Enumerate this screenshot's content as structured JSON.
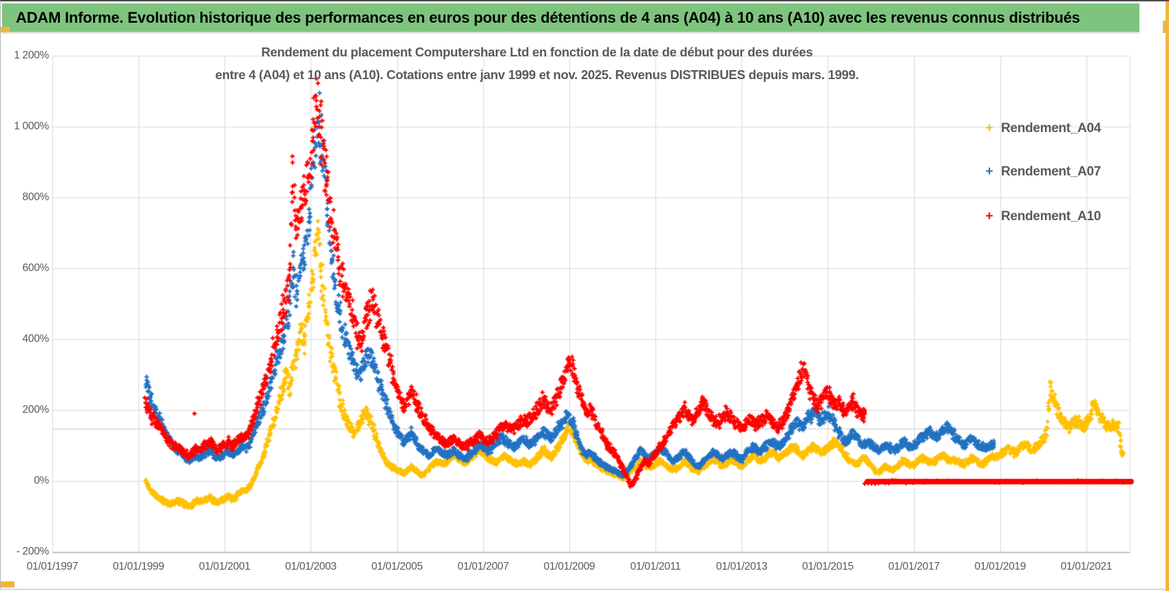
{
  "header": {
    "title": "ADAM Informe. Evolution historique des performances en euros pour des détentions de 4 ans (A04) à 10 ans (A10) avec les revenus connus distribués"
  },
  "accent_color": "#efb63f",
  "header_green": "#7ec47e",
  "chart_data": {
    "type": "scatter",
    "marker": "plus",
    "title_lines": [
      "Rendement du placement Computershare Ltd en fonction de la date de début pour des durées",
      "entre 4 (A04) et 10 ans (A10). Cotations entre janv 1999 et nov. 2025. Revenus DISTRIBUES depuis mars. 1999."
    ],
    "grid": true,
    "gridline_color": "#d9d9d9",
    "axis_label_color": "#595959",
    "xlim_years": [
      1997,
      2022.1
    ],
    "ylim": [
      -200,
      1200
    ],
    "x_ticks": [
      {
        "year": 1997,
        "label": "01/01/1997"
      },
      {
        "year": 1999,
        "label": "01/01/1999"
      },
      {
        "year": 2001,
        "label": "01/01/2001"
      },
      {
        "year": 2003,
        "label": "01/01/2003"
      },
      {
        "year": 2005,
        "label": "01/01/2005"
      },
      {
        "year": 2007,
        "label": "01/01/2007"
      },
      {
        "year": 2009,
        "label": "01/01/2009"
      },
      {
        "year": 2011,
        "label": "01/01/2011"
      },
      {
        "year": 2013,
        "label": "01/01/2013"
      },
      {
        "year": 2015,
        "label": "01/01/2015"
      },
      {
        "year": 2017,
        "label": "01/01/2017"
      },
      {
        "year": 2019,
        "label": "01/01/2019"
      },
      {
        "year": 2021,
        "label": "01/01/2021"
      }
    ],
    "y_ticks": [
      {
        "value": 1200,
        "label": "1 200%"
      },
      {
        "value": 1000,
        "label": "1 000%"
      },
      {
        "value": 800,
        "label": "800%"
      },
      {
        "value": 600,
        "label": "600%"
      },
      {
        "value": 400,
        "label": "400%"
      },
      {
        "value": 200,
        "label": "200%"
      },
      {
        "value": 0,
        "label": "0%"
      },
      {
        "value": -200,
        "label": "- 200%"
      }
    ],
    "reference_line": {
      "value": 148,
      "color": "#c9c9c9"
    },
    "legend": {
      "position": "right",
      "entries": [
        {
          "label": "Rendement_A04",
          "color": "#FFC000"
        },
        {
          "label": "Rendement_A07",
          "color": "#2272C3"
        },
        {
          "label": "Rendement_A10",
          "color": "#FF0000"
        }
      ]
    },
    "series": [
      {
        "name": "Rendement_A04",
        "color": "#FFC000",
        "start_year": 1999,
        "start_month": 3,
        "monthly_pct": {
          "1999": [
            0,
            -18,
            -32,
            -42,
            -52,
            -57,
            -62,
            -66,
            -60,
            -56
          ],
          "2000": [
            -62,
            -66,
            -70,
            -66,
            -56,
            -61,
            -56,
            -51,
            -46,
            -56,
            -61,
            -56
          ],
          "2001": [
            -51,
            -41,
            -51,
            -46,
            -36,
            -26,
            -31,
            -16,
            4,
            24,
            50,
            80
          ],
          "2002": [
            110,
            142,
            182,
            222,
            262,
            302,
            262,
            312,
            372,
            422,
            392,
            452
          ],
          "2003": [
            532,
            622,
            700,
            562,
            482,
            402,
            332,
            282,
            232,
            192,
            172,
            152
          ],
          "2004": [
            132,
            152,
            172,
            192,
            182,
            162,
            132,
            102,
            72,
            52,
            42,
            36
          ],
          "2005": [
            31,
            26,
            21,
            31,
            41,
            31,
            21,
            16,
            26,
            36,
            46,
            56
          ],
          "2006": [
            51,
            46,
            56,
            66,
            76,
            66,
            56,
            51,
            61,
            71,
            81,
            91
          ],
          "2007": [
            81,
            71,
            61,
            56,
            51,
            61,
            71,
            66,
            56,
            51,
            46,
            56
          ],
          "2008": [
            51,
            46,
            56,
            66,
            76,
            86,
            76,
            66,
            81,
            96,
            116,
            141
          ],
          "2009": [
            151,
            136,
            111,
            86,
            66,
            56,
            66,
            51,
            41,
            36,
            31,
            26
          ],
          "2010": [
            21,
            16,
            11,
            6,
            16,
            26,
            36,
            46,
            56,
            46,
            36,
            41
          ],
          "2011": [
            46,
            56,
            51,
            41,
            36,
            31,
            36,
            46,
            56,
            46,
            36,
            31
          ],
          "2012": [
            26,
            36,
            46,
            56,
            61,
            56,
            46,
            41,
            51,
            61,
            56,
            46
          ],
          "2013": [
            41,
            51,
            61,
            71,
            66,
            56,
            61,
            71,
            81,
            76,
            66,
            71
          ],
          "2014": [
            76,
            86,
            96,
            91,
            81,
            71,
            81,
            91,
            101,
            91,
            81,
            86
          ],
          "2015": [
            91,
            101,
            111,
            101,
            86,
            71,
            61,
            51,
            46,
            56,
            66,
            56
          ],
          "2016": [
            46,
            31,
            21,
            31,
            41,
            36,
            31,
            36,
            46,
            56,
            51,
            41
          ],
          "2017": [
            46,
            56,
            66,
            61,
            56,
            51,
            56,
            66,
            71,
            66,
            56,
            61
          ],
          "2018": [
            56,
            51,
            46,
            56,
            66,
            61,
            51,
            46,
            56,
            66,
            71,
            66
          ],
          "2019": [
            71,
            81,
            91,
            86,
            76,
            86,
            96,
            106,
            96,
            86,
            96,
            106
          ],
          "2020": [
            116,
            136,
            270,
            222,
            192,
            172,
            162,
            152,
            162,
            172,
            162,
            152
          ],
          "2021": [
            162,
            176,
            230,
            202,
            182,
            166,
            156,
            151,
            161,
            151,
            76
          ]
        }
      },
      {
        "name": "Rendement_A07",
        "color": "#2272C3",
        "start_year": 1999,
        "start_month": 3,
        "monthly_pct": {
          "1999": [
            282,
            242,
            216,
            192,
            172,
            152,
            132,
            112,
            96,
            86
          ],
          "2000": [
            76,
            66,
            56,
            62,
            72,
            66,
            73,
            81,
            86,
            73,
            63,
            69
          ],
          "2001": [
            76,
            86,
            71,
            79,
            89,
            99,
            93,
            106,
            136,
            161,
            186,
            216
          ],
          "2002": [
            242,
            276,
            321,
            356,
            391,
            431,
            481,
            600,
            540,
            580,
            610,
            680
          ],
          "2003": [
            800,
            920,
            1040,
            930,
            830,
            720,
            610,
            530,
            470,
            425,
            392,
            362
          ],
          "2004": [
            332,
            312,
            302,
            342,
            372,
            342,
            312,
            282,
            252,
            222,
            192,
            162
          ],
          "2005": [
            142,
            122,
            106,
            122,
            136,
            122,
            101,
            86,
            76,
            71,
            81,
            91
          ],
          "2006": [
            86,
            76,
            71,
            79,
            86,
            76,
            66,
            61,
            71,
            81,
            91,
            101
          ],
          "2007": [
            96,
            86,
            91,
            101,
            111,
            121,
            116,
            106,
            96,
            101,
            111,
            121
          ],
          "2008": [
            111,
            101,
            111,
            121,
            131,
            141,
            131,
            121,
            136,
            151,
            166,
            181
          ],
          "2009": [
            176,
            161,
            131,
            101,
            81,
            71,
            81,
            66,
            56,
            46,
            41,
            36
          ],
          "2010": [
            31,
            26,
            21,
            16,
            26,
            41,
            56,
            71,
            86,
            76,
            61,
            71
          ],
          "2011": [
            81,
            91,
            86,
            76,
            66,
            56,
            61,
            71,
            81,
            71,
            56,
            46
          ],
          "2012": [
            41,
            51,
            61,
            71,
            81,
            76,
            66,
            61,
            71,
            81,
            76,
            66
          ],
          "2013": [
            61,
            71,
            86,
            96,
            91,
            81,
            91,
            101,
            111,
            106,
            96,
            106
          ],
          "2014": [
            116,
            131,
            151,
            171,
            161,
            151,
            166,
            181,
            196,
            186,
            171,
            181
          ],
          "2015": [
            191,
            176,
            156,
            136,
            121,
            111,
            121,
            136,
            126,
            111,
            101,
            111
          ],
          "2016": [
            106,
            96,
            86,
            91,
            101,
            96,
            86,
            91,
            101,
            111,
            106,
            96
          ],
          "2017": [
            101,
            111,
            121,
            131,
            141,
            136,
            126,
            131,
            141,
            151,
            141,
            131
          ],
          "2018": [
            121,
            111,
            101,
            111,
            121,
            111,
            101,
            96,
            91,
            96,
            101
          ]
        }
      },
      {
        "name": "Rendement_A10",
        "color": "#FF0000",
        "start_year": 1999,
        "start_month": 3,
        "monthly_pct": {
          "1999": [
            215,
            195,
            178,
            162,
            148,
            135,
            122,
            108,
            98,
            92
          ],
          "2000": [
            86,
            78,
            72,
            80,
            92,
            85,
            95,
            105,
            112,
            98,
            88,
            95
          ],
          "2001": [
            103,
            112,
            96,
            107,
            120,
            130,
            124,
            140,
            178,
            208,
            238,
            268
          ],
          "2002": [
            298,
            340,
            388,
            425,
            460,
            510,
            570,
            870,
            700,
            760,
            800,
            850
          ],
          "2003": [
            920,
            1000,
            1065,
            990,
            900,
            810,
            730,
            660,
            600,
            555,
            520,
            485
          ],
          "2004": [
            440,
            405,
            392,
            445,
            478,
            508,
            482,
            442,
            402,
            372,
            332,
            292
          ],
          "2005": [
            258,
            228,
            206,
            236,
            256,
            236,
            206,
            186,
            166,
            152,
            142,
            132
          ],
          "2006": [
            122,
            113,
            106,
            113,
            119,
            109,
            101,
            96,
            106,
            113,
            119,
            126
          ],
          "2007": [
            119,
            111,
            119,
            129,
            139,
            149,
            159,
            151,
            143,
            151,
            161,
            171
          ],
          "2008": [
            163,
            173,
            186,
            201,
            216,
            231,
            216,
            201,
            221,
            251,
            281,
            311
          ],
          "2009": [
            332,
            318,
            278,
            238,
            208,
            190,
            201,
            171,
            151,
            131,
            111,
            96
          ],
          "2010": [
            86,
            71,
            51,
            31,
            11,
            -14,
            -4,
            21,
            41,
            56,
            46,
            61
          ],
          "2011": [
            76,
            91,
            106,
            121,
            141,
            161,
            176,
            191,
            201,
            186,
            171,
            186
          ],
          "2012": [
            201,
            216,
            206,
            191,
            176,
            161,
            171,
            186,
            196,
            181,
            166,
            156
          ],
          "2013": [
            151,
            161,
            176,
            166,
            156,
            166,
            176,
            186,
            176,
            161,
            151,
            161
          ],
          "2014": [
            176,
            201,
            231,
            261,
            291,
            321,
            291,
            261,
            231,
            211,
            221,
            241
          ],
          "2015": [
            251,
            231,
            211,
            226,
            206,
            196,
            211,
            226,
            206,
            191,
            186
          ]
        }
      }
    ],
    "outliers": [
      {
        "series": "Rendement_A10",
        "year_dec": 2000.3,
        "value": 190
      }
    ],
    "zero_segment": {
      "series": "Rendement_A10",
      "color": "#FF0000",
      "start_year_dec": 2015.92,
      "end_year_dec": 2022.04,
      "value": 0,
      "note_visual": "thick flat red line of overlapping plus markers at 0%"
    }
  }
}
